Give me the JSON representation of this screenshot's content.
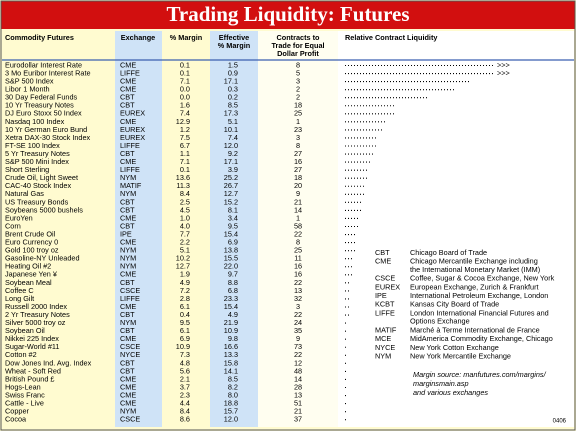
{
  "title": "Trading Liquidity: Futures",
  "headers": {
    "commodity": [
      "Commodity Futures"
    ],
    "exchange": [
      "Exchange"
    ],
    "margin": [
      "% Margin"
    ],
    "effective_margin": [
      "Effective",
      "% Margin"
    ],
    "contracts": [
      "Contracts to",
      "Trade for Equal",
      "Dollar Profit"
    ],
    "liquidity": [
      "Relative Contract Liquidity"
    ]
  },
  "rows": [
    {
      "commodity": "Eurodollar Interest Rate",
      "exchange": "CME",
      "margin": "0.1",
      "effective_margin": "1.5",
      "contracts": "8",
      "liquidity": 50,
      "arrow": ">>>"
    },
    {
      "commodity": "3 Mo Euribor Interest Rate",
      "exchange": "LIFFE",
      "margin": "0.1",
      "effective_margin": "0.9",
      "contracts": "5",
      "liquidity": 50,
      "arrow": ">>>"
    },
    {
      "commodity": "S&P 500 Index",
      "exchange": "CME",
      "margin": "7.1",
      "effective_margin": "17.1",
      "contracts": "3",
      "liquidity": 42
    },
    {
      "commodity": "Libor 1 Month",
      "exchange": "CME",
      "margin": "0.0",
      "effective_margin": "0.3",
      "contracts": "2",
      "liquidity": 37
    },
    {
      "commodity": "30 Day Federal Funds",
      "exchange": "CBT",
      "margin": "0.0",
      "effective_margin": "0.2",
      "contracts": "2",
      "liquidity": 28
    },
    {
      "commodity": "10 Yr Treasury Notes",
      "exchange": "CBT",
      "margin": "1.6",
      "effective_margin": "8.5",
      "contracts": "18",
      "liquidity": 17
    },
    {
      "commodity": "DJ Euro Stoxx 50 Index",
      "exchange": "EUREX",
      "margin": "7.4",
      "effective_margin": "17.3",
      "contracts": "25",
      "liquidity": 17
    },
    {
      "commodity": "Nasdaq 100 Index",
      "exchange": "CME",
      "margin": "12.9",
      "effective_margin": "5.1",
      "contracts": "1",
      "liquidity": 14
    },
    {
      "commodity": "10 Yr German Euro Bund",
      "exchange": "EUREX",
      "margin": "1.2",
      "effective_margin": "10.1",
      "contracts": "23",
      "liquidity": 13
    },
    {
      "commodity": "Xetra DAX-30 Stock Index",
      "exchange": "EUREX",
      "margin": "7.5",
      "effective_margin": "7.4",
      "contracts": "3",
      "liquidity": 11
    },
    {
      "commodity": "FT-SE 100 Index",
      "exchange": "LIFFE",
      "margin": "6.7",
      "effective_margin": "12.0",
      "contracts": "8",
      "liquidity": 11
    },
    {
      "commodity": "5 Yr Treasury Notes",
      "exchange": "CBT",
      "margin": "1.1",
      "effective_margin": "9.2",
      "contracts": "27",
      "liquidity": 10
    },
    {
      "commodity": "S&P 500 Mini Index",
      "exchange": "CME",
      "margin": "7.1",
      "effective_margin": "17.1",
      "contracts": "16",
      "liquidity": 9
    },
    {
      "commodity": "Short Sterling",
      "exchange": "LIFFE",
      "margin": "0.1",
      "effective_margin": "3.9",
      "contracts": "27",
      "liquidity": 8
    },
    {
      "commodity": "Crude Oil, Light Sweet",
      "exchange": "NYM",
      "margin": "13.6",
      "effective_margin": "25.2",
      "contracts": "18",
      "liquidity": 8
    },
    {
      "commodity": "CAC-40 Stock Index",
      "exchange": "MATIF",
      "margin": "11.3",
      "effective_margin": "26.7",
      "contracts": "20",
      "liquidity": 7
    },
    {
      "commodity": "Natural Gas",
      "exchange": "NYM",
      "margin": "8.4",
      "effective_margin": "12.7",
      "contracts": "9",
      "liquidity": 7
    },
    {
      "commodity": "US Treasury Bonds",
      "exchange": "CBT",
      "margin": "2.5",
      "effective_margin": "15.2",
      "contracts": "21",
      "liquidity": 6
    },
    {
      "commodity": "Soybeans 5000 bushels",
      "exchange": "CBT",
      "margin": "4.5",
      "effective_margin": "8.1",
      "contracts": "14",
      "liquidity": 6
    },
    {
      "commodity": "EuroYen",
      "exchange": "CME",
      "margin": "1.0",
      "effective_margin": "3.4",
      "contracts": "1",
      "liquidity": 5
    },
    {
      "commodity": "Corn",
      "exchange": "CBT",
      "margin": "4.0",
      "effective_margin": "9.5",
      "contracts": "58",
      "liquidity": 5
    },
    {
      "commodity": "Brent Crude Oil",
      "exchange": "IPE",
      "margin": "7.7",
      "effective_margin": "15.4",
      "contracts": "22",
      "liquidity": 4
    },
    {
      "commodity": "Euro Currency 0",
      "exchange": "CME",
      "margin": "2.2",
      "effective_margin": "6.9",
      "contracts": "8",
      "liquidity": 4
    },
    {
      "commodity": "Gold 100 troy oz",
      "exchange": "NYM",
      "margin": "5.1",
      "effective_margin": "13.8",
      "contracts": "25",
      "liquidity": 4
    },
    {
      "commodity": "Gasoline-NY Unleaded",
      "exchange": "NYM",
      "margin": "10.2",
      "effective_margin": "15.5",
      "contracts": "11",
      "liquidity": 3
    },
    {
      "commodity": "Heating Oil #2",
      "exchange": "NYM",
      "margin": "12.7",
      "effective_margin": "22.0",
      "contracts": "16",
      "liquidity": 3
    },
    {
      "commodity": "Japanese Yen ¥",
      "exchange": "CME",
      "margin": "1.9",
      "effective_margin": "9.7",
      "contracts": "16",
      "liquidity": 3
    },
    {
      "commodity": "Soybean Meal",
      "exchange": "CBT",
      "margin": "4.9",
      "effective_margin": "8.8",
      "contracts": "22",
      "liquidity": 2
    },
    {
      "commodity": "Coffee C",
      "exchange": "CSCE",
      "margin": "7.2",
      "effective_margin": "6.8",
      "contracts": "13",
      "liquidity": 2
    },
    {
      "commodity": "Long Gilt",
      "exchange": "LIFFE",
      "margin": "2.8",
      "effective_margin": "23.3",
      "contracts": "32",
      "liquidity": 2
    },
    {
      "commodity": "Russell 2000 Index",
      "exchange": "CME",
      "margin": "6.1",
      "effective_margin": "15.4",
      "contracts": "3",
      "liquidity": 2
    },
    {
      "commodity": "2 Yr Treasury Notes",
      "exchange": "CBT",
      "margin": "0.4",
      "effective_margin": "4.9",
      "contracts": "22",
      "liquidity": 2
    },
    {
      "commodity": "Silver 5000 troy oz",
      "exchange": "NYM",
      "margin": "9.5",
      "effective_margin": "21.9",
      "contracts": "24",
      "liquidity": 1
    },
    {
      "commodity": "Soybean Oil",
      "exchange": "CBT",
      "margin": "6.1",
      "effective_margin": "10.9",
      "contracts": "35",
      "liquidity": 1
    },
    {
      "commodity": "Nikkei 225 Index",
      "exchange": "CME",
      "margin": "6.9",
      "effective_margin": "9.8",
      "contracts": "9",
      "liquidity": 1
    },
    {
      "commodity": "Sugar-World #11",
      "exchange": "CSCE",
      "margin": "10.9",
      "effective_margin": "16.6",
      "contracts": "73",
      "liquidity": 1
    },
    {
      "commodity": "Cotton #2",
      "exchange": "NYCE",
      "margin": "7.3",
      "effective_margin": "13.3",
      "contracts": "22",
      "liquidity": 1
    },
    {
      "commodity": "Dow Jones Ind. Avg. Index",
      "exchange": "CBT",
      "margin": "4.8",
      "effective_margin": "15.8",
      "contracts": "12",
      "liquidity": 1
    },
    {
      "commodity": "Wheat - Soft Red",
      "exchange": "CBT",
      "margin": "5.6",
      "effective_margin": "14.1",
      "contracts": "48",
      "liquidity": 1
    },
    {
      "commodity": "British Pound £",
      "exchange": "CME",
      "margin": "2.1",
      "effective_margin": "8.5",
      "contracts": "14",
      "liquidity": 1
    },
    {
      "commodity": "Hogs-Lean",
      "exchange": "CME",
      "margin": "3.7",
      "effective_margin": "8.2",
      "contracts": "28",
      "liquidity": 1
    },
    {
      "commodity": "Swiss Franc",
      "exchange": "CME",
      "margin": "2.3",
      "effective_margin": "8.0",
      "contracts": "13",
      "liquidity": 1
    },
    {
      "commodity": "Cattle - Live",
      "exchange": "CME",
      "margin": "4.4",
      "effective_margin": "18.8",
      "contracts": "51",
      "liquidity": 1
    },
    {
      "commodity": "Copper",
      "exchange": "NYM",
      "margin": "8.4",
      "effective_margin": "15.7",
      "contracts": "21",
      "liquidity": 1
    },
    {
      "commodity": "Cocoa",
      "exchange": "CSCE",
      "margin": "8.6",
      "effective_margin": "12.0",
      "contracts": "37",
      "liquidity": 1
    }
  ],
  "legend": [
    {
      "code": "CBT",
      "description": [
        "Chicago Board of Trade"
      ]
    },
    {
      "code": "CME",
      "description": [
        "Chicago Mercantile Exchange including",
        "the International Monetary Market (IMM)"
      ]
    },
    {
      "code": "CSCE",
      "description": [
        "Coffee, Sugar & Cocoa Exchange, New York"
      ]
    },
    {
      "code": "EUREX",
      "description": [
        "European Exchange, Zurich & Frankfurt"
      ]
    },
    {
      "code": "IPE",
      "description": [
        "International Petroleum Exchange, London"
      ]
    },
    {
      "code": "KCBT",
      "description": [
        "Kansas City Board of Trade"
      ]
    },
    {
      "code": "LIFFE",
      "description": [
        "London International Financial Futures and",
        "Options Exchange"
      ]
    },
    {
      "code": "MATIF",
      "description": [
        "Marché à Terme International de France"
      ]
    },
    {
      "code": "MCE",
      "description": [
        "MidAmerica Commodity Exchange, Chicago"
      ]
    },
    {
      "code": "NYCE",
      "description": [
        "New York Cotton Exchange"
      ]
    },
    {
      "code": "NYM",
      "description": [
        "New York Mercantile Exchange"
      ]
    }
  ],
  "source": [
    "Margin source: manfutures.com/margins/",
    "marginsmain.asp",
    "and various exchanges"
  ],
  "code": "0406"
}
